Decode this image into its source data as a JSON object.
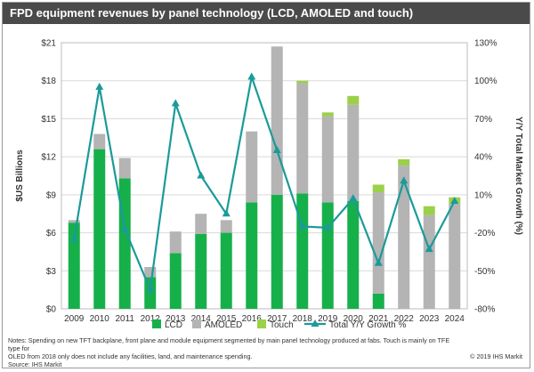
{
  "title": "FPD equipment revenues by panel technology (LCD, AMOLED and touch)",
  "notes_line1": "Notes: Spending on new TFT backplane, front plane and module equipment segmented by main panel technology produced at fabs. Touch is mainly on TFE type for",
  "notes_line2": "OLED from 2018 only does not include any facilities, land, and maintenance spending.",
  "source": "Source: IHS Markit",
  "copyright": "© 2019 IHS Markit",
  "colors": {
    "lcd": "#16b04a",
    "amoled": "#b4b4b4",
    "touch": "#9bd04a",
    "growth": "#1b9a9a"
  },
  "chart_data": {
    "type": "bar",
    "stacked": true,
    "categories": [
      "2009",
      "2010",
      "2011",
      "2012",
      "2013",
      "2014",
      "2015",
      "2016",
      "2017",
      "2018",
      "2019",
      "2020",
      "2021",
      "2022",
      "2023",
      "2024"
    ],
    "series": [
      {
        "name": "LCD",
        "values": [
          6.8,
          12.6,
          10.3,
          2.5,
          4.4,
          5.9,
          6.0,
          8.4,
          9.0,
          9.1,
          8.4,
          8.5,
          1.2,
          0.0,
          0.0,
          0.0
        ]
      },
      {
        "name": "AMOLED",
        "values": [
          0.2,
          1.2,
          1.6,
          0.8,
          1.7,
          1.6,
          1.0,
          5.6,
          11.7,
          8.7,
          6.8,
          7.6,
          8.0,
          11.3,
          7.4,
          8.3
        ]
      },
      {
        "name": "Touch",
        "values": [
          0.0,
          0.0,
          0.0,
          0.0,
          0.0,
          0.0,
          0.0,
          0.0,
          0.0,
          0.2,
          0.3,
          0.7,
          0.6,
          0.5,
          0.7,
          0.5
        ]
      },
      {
        "name": "Total Y/Y Growth %",
        "axis": "right",
        "type": "line",
        "values": [
          -25,
          95,
          -17,
          -65,
          82,
          25,
          -5,
          103,
          45,
          -15,
          -16,
          7,
          -44,
          21,
          -33,
          5
        ]
      }
    ],
    "ylabel": "$US Billions",
    "y2label": "Y/Y Total Market Growth (%)",
    "ylim": [
      0,
      21
    ],
    "y2lim": [
      -80,
      130
    ],
    "yticks": [
      "$0",
      "$3",
      "$6",
      "$9",
      "$12",
      "$15",
      "$18",
      "$21"
    ],
    "y2ticks": [
      "-80%",
      "-50%",
      "-20%",
      "10%",
      "40%",
      "70%",
      "100%",
      "130%"
    ],
    "legend_position": "bottom"
  }
}
